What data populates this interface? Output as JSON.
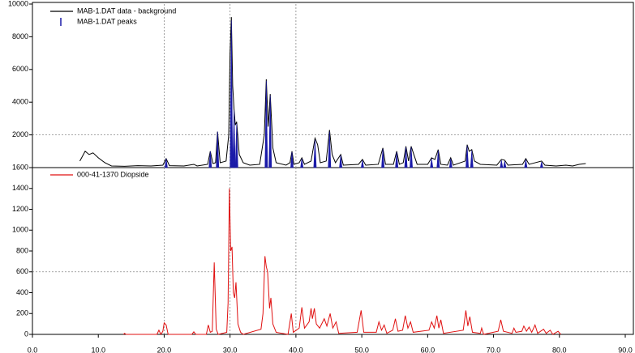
{
  "chart_data": [
    {
      "type": "line",
      "xlim": [
        0,
        90
      ],
      "ylim": [
        0,
        10000
      ],
      "yticks": [
        2000,
        4000,
        6000,
        8000,
        10000
      ],
      "xgrid": [
        20,
        30,
        40
      ],
      "ygrid": [
        2000
      ],
      "series": [
        {
          "name": "MAB-1.DAT data - background",
          "color": "#000000",
          "x": [
            7.2,
            7.6,
            8.0,
            8.6,
            9.2,
            10.0,
            11.0,
            12.0,
            14.0,
            16.0,
            18.0,
            19.8,
            20.3,
            20.8,
            23.0,
            24.5,
            25.0,
            26.6,
            27.0,
            27.4,
            27.8,
            28.1,
            28.5,
            29.4,
            29.8,
            30.0,
            30.2,
            30.4,
            30.6,
            30.8,
            31.0,
            31.4,
            32.0,
            33.0,
            34.5,
            35.2,
            35.5,
            35.8,
            36.1,
            36.5,
            37.0,
            38.5,
            39.1,
            39.4,
            39.7,
            40.5,
            40.9,
            41.3,
            42.3,
            42.9,
            43.3,
            43.7,
            44.6,
            45.1,
            45.5,
            46.0,
            46.8,
            47.2,
            49.5,
            50.1,
            50.6,
            52.5,
            53.2,
            53.6,
            54.8,
            55.3,
            55.7,
            56.3,
            56.7,
            57.1,
            57.5,
            57.9,
            58.4,
            60.0,
            60.6,
            61.1,
            61.6,
            62.0,
            63.0,
            63.5,
            63.9,
            65.7,
            66.0,
            66.3,
            66.7,
            67.1,
            68.0,
            70.5,
            71.2,
            71.7,
            72.2,
            74.4,
            74.9,
            75.4,
            77.3,
            77.8,
            79.5,
            81.0,
            82.0,
            83.0,
            84.0
          ],
          "values": [
            400,
            700,
            1000,
            800,
            900,
            600,
            300,
            100,
            80,
            120,
            100,
            150,
            550,
            120,
            100,
            200,
            100,
            200,
            1000,
            250,
            300,
            2200,
            300,
            400,
            2000,
            7000,
            9200,
            5000,
            3600,
            2600,
            2800,
            800,
            300,
            150,
            200,
            2000,
            5400,
            2500,
            4500,
            1200,
            300,
            150,
            300,
            1000,
            200,
            300,
            600,
            200,
            400,
            1800,
            1400,
            300,
            400,
            2300,
            800,
            300,
            800,
            150,
            200,
            500,
            150,
            200,
            1200,
            200,
            200,
            1000,
            200,
            300,
            1300,
            400,
            1300,
            800,
            200,
            200,
            600,
            500,
            1100,
            200,
            150,
            600,
            150,
            400,
            1400,
            1000,
            1100,
            400,
            200,
            150,
            500,
            450,
            150,
            200,
            550,
            200,
            400,
            150,
            100,
            150,
            100,
            200,
            250
          ]
        },
        {
          "name": "MAB-1.DAT peaks",
          "color": "#1a1aa8",
          "mark": "stick",
          "x": [
            20.3,
            27.0,
            28.1,
            30.2,
            30.6,
            31.0,
            35.5,
            36.1,
            39.4,
            40.9,
            42.9,
            45.1,
            46.8,
            50.1,
            53.2,
            55.3,
            56.7,
            57.5,
            60.6,
            61.6,
            63.5,
            66.0,
            66.7,
            71.2,
            71.7,
            74.9,
            77.3
          ],
          "values": [
            550,
            1000,
            2200,
            9000,
            3500,
            2700,
            5300,
            4400,
            950,
            550,
            1700,
            2200,
            750,
            450,
            1150,
            950,
            1250,
            1250,
            550,
            1050,
            550,
            1350,
            1050,
            450,
            400,
            500,
            350
          ]
        }
      ]
    },
    {
      "type": "line",
      "xlim": [
        0,
        90
      ],
      "xticks": [
        {
          "value": 0,
          "label": "0.0"
        },
        {
          "value": 10,
          "label": "10.0"
        },
        {
          "value": 20,
          "label": "20.0"
        },
        {
          "value": 30,
          "label": "30.0"
        },
        {
          "value": 40,
          "label": "40.0"
        },
        {
          "value": 50,
          "label": "50.0"
        },
        {
          "value": 60,
          "label": "60.0"
        },
        {
          "value": 70,
          "label": "70.0"
        },
        {
          "value": 80,
          "label": "80.0"
        },
        {
          "value": 90,
          "label": "90.0"
        }
      ],
      "ylim": [
        0,
        1600
      ],
      "yticks": [
        0,
        200,
        400,
        600,
        800,
        1000,
        1200,
        1400,
        1600
      ],
      "xgrid": [
        20,
        30,
        40
      ],
      "ygrid": [
        600
      ],
      "series": [
        {
          "name": "000-41-1370 Diopside",
          "color": "#e01010",
          "x": [
            13.8,
            14.0,
            14.2,
            18.9,
            19.2,
            19.5,
            19.8,
            20.0,
            20.3,
            20.6,
            24.2,
            24.5,
            24.8,
            26.4,
            26.7,
            27.0,
            27.3,
            27.6,
            27.9,
            28.2,
            29.5,
            29.7,
            29.9,
            30.1,
            30.3,
            30.5,
            30.7,
            30.9,
            31.2,
            31.6,
            32.0,
            34.7,
            35.0,
            35.3,
            35.5,
            35.7,
            36.0,
            36.2,
            36.5,
            37.0,
            38.8,
            39.3,
            39.6,
            40.5,
            40.9,
            41.3,
            42.0,
            42.3,
            42.5,
            42.8,
            43.1,
            43.6,
            44.3,
            44.7,
            45.2,
            45.6,
            46.1,
            46.5,
            49.3,
            49.9,
            50.3,
            52.2,
            52.6,
            53.0,
            53.4,
            53.8,
            54.7,
            55.1,
            55.5,
            56.2,
            56.6,
            57.0,
            57.4,
            57.8,
            60.2,
            60.6,
            61.0,
            61.4,
            61.7,
            62.0,
            62.4,
            65.4,
            65.8,
            66.1,
            66.4,
            66.8,
            68.0,
            68.2,
            68.5,
            70.7,
            71.1,
            71.5,
            72.8,
            73.1,
            73.4,
            74.3,
            74.6,
            75.0,
            75.4,
            75.8,
            76.3,
            76.7,
            77.6,
            78.0,
            78.6,
            79.0,
            79.8,
            80.2
          ],
          "values": [
            0,
            10,
            0,
            0,
            40,
            0,
            30,
            110,
            90,
            0,
            0,
            25,
            0,
            0,
            90,
            20,
            30,
            690,
            50,
            0,
            20,
            300,
            1400,
            800,
            840,
            400,
            350,
            500,
            100,
            20,
            0,
            50,
            200,
            750,
            650,
            600,
            250,
            350,
            100,
            20,
            0,
            200,
            20,
            60,
            260,
            60,
            120,
            250,
            150,
            250,
            100,
            60,
            150,
            80,
            200,
            60,
            120,
            10,
            20,
            230,
            20,
            20,
            120,
            40,
            90,
            10,
            40,
            150,
            30,
            40,
            180,
            60,
            120,
            20,
            40,
            120,
            60,
            180,
            60,
            140,
            10,
            40,
            230,
            80,
            170,
            20,
            10,
            60,
            0,
            30,
            140,
            30,
            10,
            60,
            20,
            30,
            80,
            30,
            70,
            20,
            90,
            10,
            50,
            10,
            40,
            0,
            30,
            0
          ]
        }
      ]
    }
  ]
}
